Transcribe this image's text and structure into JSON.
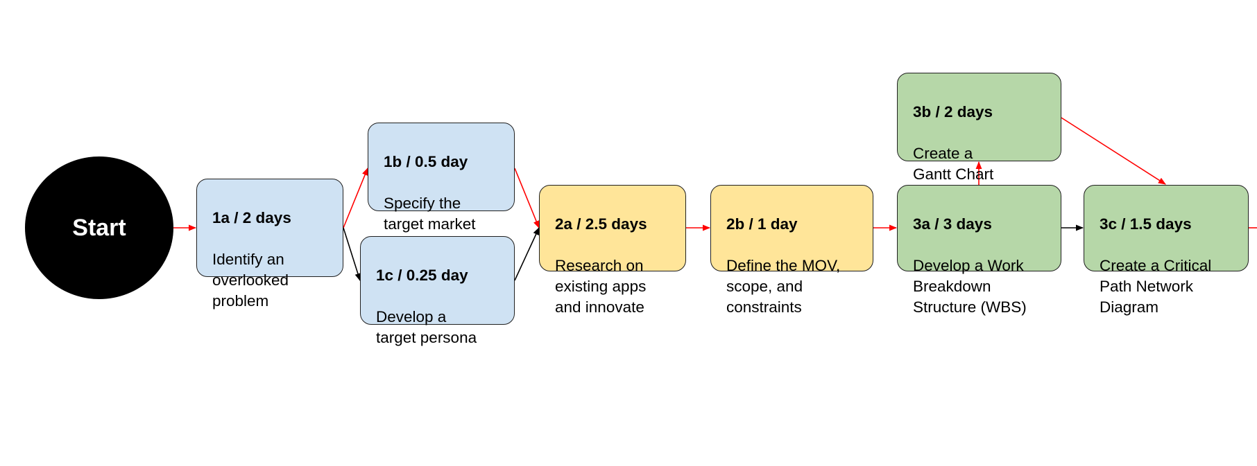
{
  "start": {
    "label": "Start"
  },
  "colors": {
    "phase1_fill": "#cfe2f3",
    "phase2_fill": "#ffe599",
    "phase3_fill": "#b6d7a8",
    "critical_edge": "#ff0000",
    "normal_edge": "#000000",
    "start_fill": "#000000"
  },
  "tasks": {
    "t1a": {
      "title": "1a / 2 days",
      "desc": "Identify an\noverlooked\nproblem"
    },
    "t1b": {
      "title": "1b / 0.5 day",
      "desc": "Specify the\ntarget market"
    },
    "t1c": {
      "title": "1c / 0.25 day",
      "desc": "Develop a\ntarget persona"
    },
    "t2a": {
      "title": "2a / 2.5 days",
      "desc": "Research on\nexisting apps\nand innovate"
    },
    "t2b": {
      "title": "2b / 1 day",
      "desc": "Define the MOV,\nscope, and\nconstraints"
    },
    "t3a": {
      "title": "3a / 3 days",
      "desc": "Develop a Work\nBreakdown\nStructure (WBS)"
    },
    "t3b": {
      "title": "3b / 2 days",
      "desc": "Create a\nGantt Chart"
    },
    "t3c": {
      "title": "3c / 1.5 days",
      "desc": "Create a Critical\nPath Network\nDiagram"
    }
  },
  "edges": [
    {
      "from": "start",
      "to": "1a",
      "critical": true
    },
    {
      "from": "1a",
      "to": "1b",
      "critical": true
    },
    {
      "from": "1a",
      "to": "1c",
      "critical": false
    },
    {
      "from": "1b",
      "to": "2a",
      "critical": true
    },
    {
      "from": "1c",
      "to": "2a",
      "critical": false
    },
    {
      "from": "2a",
      "to": "2b",
      "critical": true
    },
    {
      "from": "2b",
      "to": "3a",
      "critical": true
    },
    {
      "from": "3a",
      "to": "3b",
      "critical": true
    },
    {
      "from": "3a",
      "to": "3c",
      "critical": false
    },
    {
      "from": "3b",
      "to": "3c",
      "critical": true
    },
    {
      "from": "3c",
      "to": "next",
      "critical": true
    }
  ]
}
